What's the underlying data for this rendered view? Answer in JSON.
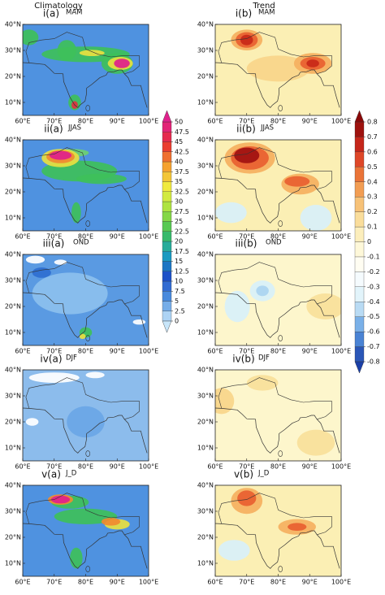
{
  "columns": [
    "Climatology",
    "Trend"
  ],
  "rows": [
    {
      "left": {
        "label": "i(a)",
        "season": "MAM"
      },
      "right": {
        "label": "i(b)",
        "season": "MAM"
      }
    },
    {
      "left": {
        "label": "ii(a)",
        "season": "JJAS"
      },
      "right": {
        "label": "ii(b)",
        "season": "JJAS"
      }
    },
    {
      "left": {
        "label": "iii(a)",
        "season": "OND"
      },
      "right": {
        "label": "iii(b)",
        "season": "OND"
      }
    },
    {
      "left": {
        "label": "iv(a)",
        "season": "DJF"
      },
      "right": {
        "label": "iv(b)",
        "season": "DJF"
      }
    },
    {
      "left": {
        "label": "v(a)",
        "season": "J_D"
      },
      "right": {
        "label": "v(b)",
        "season": "J_D"
      }
    }
  ],
  "lat_labels": [
    "40°N",
    "30°N",
    "20°N",
    "10°N"
  ],
  "lon_labels": [
    "60°E",
    "70°E",
    "80°E",
    "90°E",
    "100°E"
  ],
  "colorbars": [
    {
      "ticks": [
        0,
        2.5,
        5,
        7.5,
        10,
        12.5,
        15,
        17.5,
        20,
        22.5,
        25,
        27.5,
        30,
        32.5,
        35,
        37.5,
        40,
        42.5,
        45,
        47.5,
        50
      ]
    },
    {
      "ticks": [
        -0.8,
        -0.7,
        -0.6,
        -0.5,
        -0.4,
        -0.3,
        -0.2,
        -0.1,
        0,
        0.1,
        0.2,
        0.3,
        0.4,
        0.5,
        0.6,
        0.7,
        0.8
      ]
    }
  ]
}
